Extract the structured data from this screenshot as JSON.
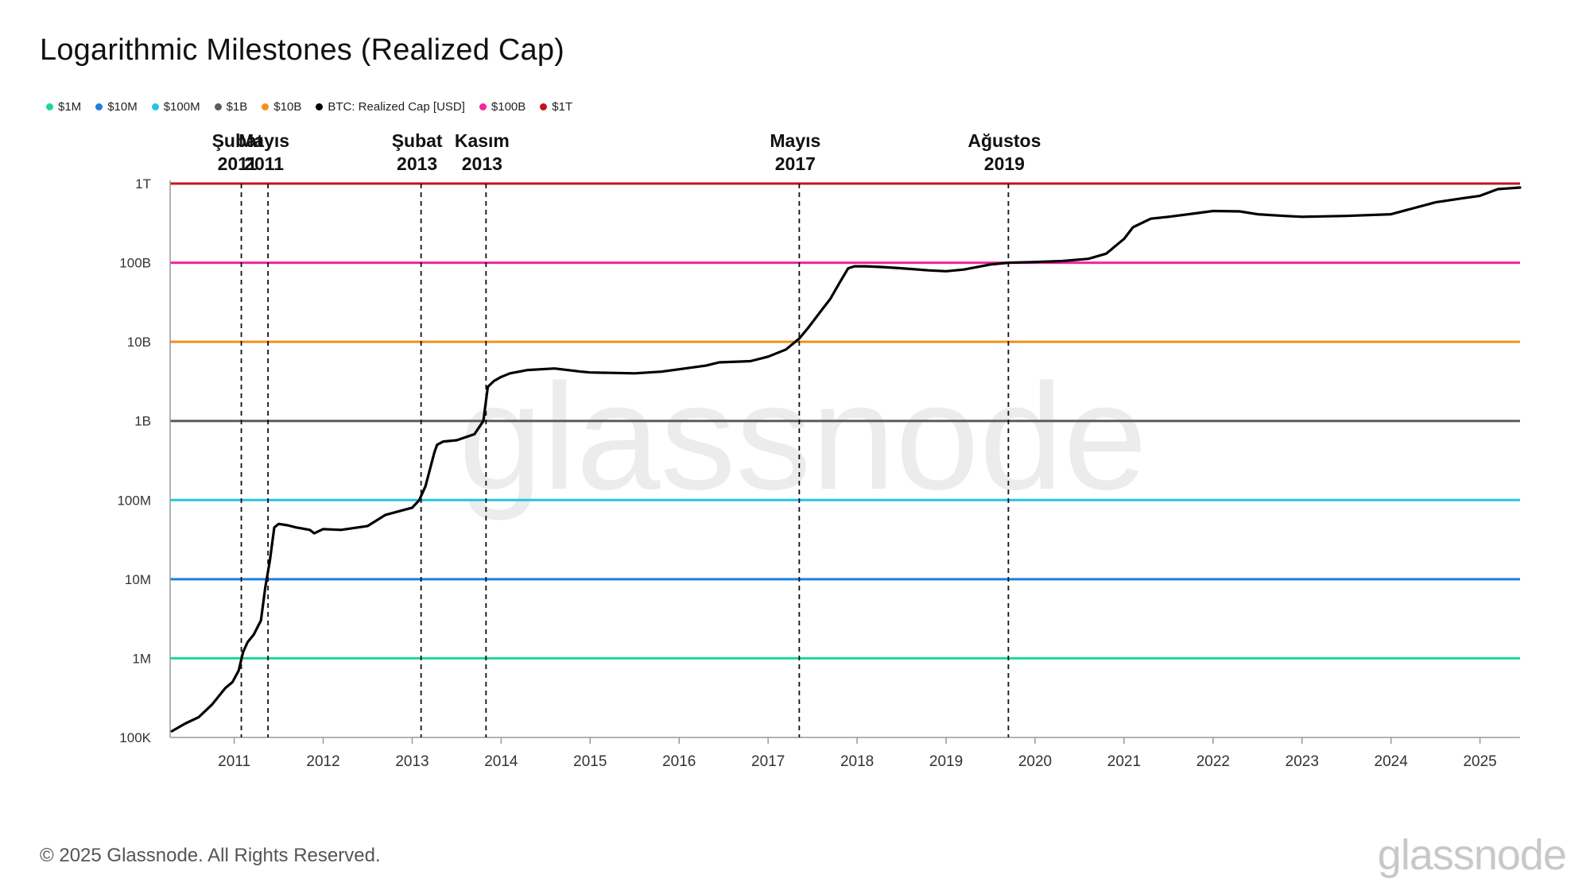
{
  "title": "Logarithmic Milestones (Realized Cap)",
  "legend": [
    {
      "label": "$1M",
      "color": "#1ed69a"
    },
    {
      "label": "$10M",
      "color": "#1f7fdc"
    },
    {
      "label": "$100M",
      "color": "#22c6e0"
    },
    {
      "label": "$1B",
      "color": "#5c5c5c"
    },
    {
      "label": "$10B",
      "color": "#f2901e"
    },
    {
      "label": "BTC: Realized Cap [USD]",
      "color": "#000000"
    },
    {
      "label": "$100B",
      "color": "#f2249e"
    },
    {
      "label": "$1T",
      "color": "#c8101e"
    }
  ],
  "footer": "© 2025 Glassnode. All Rights Reserved.",
  "brand": "glassnode",
  "watermark": "glassnode",
  "chart_data": {
    "type": "line",
    "title": "Logarithmic Milestones (Realized Cap)",
    "xlabel": "",
    "ylabel": "",
    "y_scale": "log",
    "ylim": [
      100000,
      1000000000000
    ],
    "xlim": [
      2010.28,
      2025.45
    ],
    "grid": false,
    "legend_position": "top-left",
    "y_ticks": [
      {
        "value": 100000,
        "label": "100K"
      },
      {
        "value": 1000000,
        "label": "1M"
      },
      {
        "value": 10000000,
        "label": "10M"
      },
      {
        "value": 100000000,
        "label": "100M"
      },
      {
        "value": 1000000000,
        "label": "1B"
      },
      {
        "value": 10000000000,
        "label": "10B"
      },
      {
        "value": 100000000000,
        "label": "100B"
      },
      {
        "value": 1000000000000,
        "label": "1T"
      }
    ],
    "x_ticks": [
      "2011",
      "2012",
      "2013",
      "2014",
      "2015",
      "2016",
      "2017",
      "2018",
      "2019",
      "2020",
      "2021",
      "2022",
      "2023",
      "2024",
      "2025"
    ],
    "thresholds": [
      {
        "name": "$1M",
        "value": 1000000,
        "color": "#1ed69a"
      },
      {
        "name": "$10M",
        "value": 10000000,
        "color": "#1f7fdc"
      },
      {
        "name": "$100M",
        "value": 100000000,
        "color": "#22c6e0"
      },
      {
        "name": "$1B",
        "value": 1000000000,
        "color": "#5c5c5c"
      },
      {
        "name": "$10B",
        "value": 10000000000,
        "color": "#f2901e"
      },
      {
        "name": "$100B",
        "value": 100000000000,
        "color": "#f2249e"
      },
      {
        "name": "$1T",
        "value": 1000000000000,
        "color": "#c8101e"
      }
    ],
    "milestones": [
      {
        "x": 2011.08,
        "label1": "Şubat",
        "label2": "2011"
      },
      {
        "x": 2011.38,
        "label1": "Mayıs",
        "label2": "2011"
      },
      {
        "x": 2013.1,
        "label1": "Şubat",
        "label2": "2013"
      },
      {
        "x": 2013.83,
        "label1": "Kasım",
        "label2": "2013"
      },
      {
        "x": 2017.35,
        "label1": "Mayıs",
        "label2": "2017"
      },
      {
        "x": 2019.7,
        "label1": "Ağustos",
        "label2": "2019"
      }
    ],
    "series": [
      {
        "name": "BTC: Realized Cap [USD]",
        "color": "#000000",
        "x": [
          2010.3,
          2010.45,
          2010.6,
          2010.75,
          2010.9,
          2010.98,
          2011.05,
          2011.1,
          2011.15,
          2011.22,
          2011.3,
          2011.35,
          2011.4,
          2011.45,
          2011.5,
          2011.6,
          2011.7,
          2011.85,
          2011.9,
          2012.0,
          2012.2,
          2012.5,
          2012.7,
          2013.0,
          2013.08,
          2013.15,
          2013.25,
          2013.28,
          2013.35,
          2013.5,
          2013.7,
          2013.8,
          2013.85,
          2013.92,
          2014.0,
          2014.1,
          2014.3,
          2014.6,
          2014.9,
          2015.0,
          2015.5,
          2015.8,
          2016.0,
          2016.3,
          2016.45,
          2016.8,
          2017.0,
          2017.2,
          2017.35,
          2017.45,
          2017.6,
          2017.7,
          2017.8,
          2017.9,
          2017.97,
          2018.1,
          2018.3,
          2018.5,
          2018.8,
          2019.0,
          2019.2,
          2019.5,
          2019.7,
          2020.0,
          2020.3,
          2020.6,
          2020.8,
          2020.95,
          2021.0,
          2021.1,
          2021.3,
          2021.5,
          2021.8,
          2022.0,
          2022.3,
          2022.5,
          2022.8,
          2023.0,
          2023.5,
          2024.0,
          2024.2,
          2024.5,
          2024.8,
          2025.0,
          2025.2,
          2025.45
        ],
        "y": [
          120000,
          150000,
          180000,
          260000,
          420000,
          500000,
          700000,
          1200000,
          1600000,
          2000000,
          3000000,
          8000000,
          17000000,
          45000000,
          50000000,
          48000000,
          45000000,
          42000000,
          38000000,
          43000000,
          42000000,
          47000000,
          65000000,
          80000000,
          100000000,
          150000000,
          400000000,
          500000000,
          550000000,
          570000000,
          680000000,
          1000000000,
          2700000000,
          3200000000,
          3600000000,
          4000000000,
          4400000000,
          4600000000,
          4200000000,
          4100000000,
          4000000000,
          4200000000,
          4500000000,
          5000000000,
          5500000000,
          5700000000,
          6500000000,
          8000000000,
          11000000000,
          15000000000,
          25000000000,
          35000000000,
          55000000000,
          85000000000,
          90000000000,
          90000000000,
          88000000000,
          85000000000,
          80000000000,
          78000000000,
          82000000000,
          95000000000,
          100000000000,
          102000000000,
          105000000000,
          112000000000,
          130000000000,
          180000000000,
          200000000000,
          280000000000,
          360000000000,
          380000000000,
          420000000000,
          450000000000,
          445000000000,
          410000000000,
          390000000000,
          380000000000,
          390000000000,
          410000000000,
          470000000000,
          580000000000,
          650000000000,
          700000000000,
          850000000000,
          890000000000
        ]
      }
    ]
  }
}
